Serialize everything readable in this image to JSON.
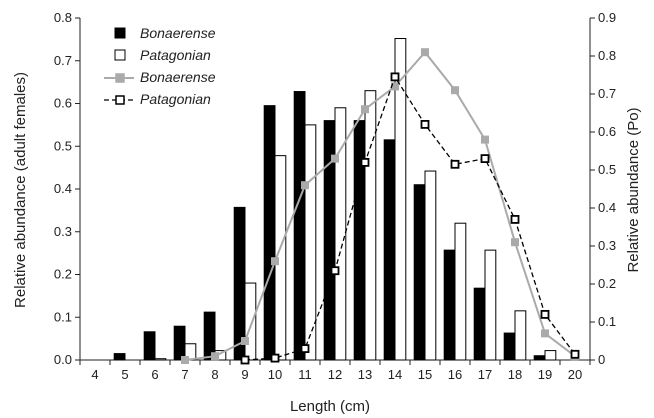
{
  "chart_data": {
    "type": "bar",
    "title": "",
    "xlabel": "Length (cm)",
    "ylabel_left": "Relative abundance (adult females)",
    "ylabel_right": "Relative abundance (Po)",
    "x": [
      4,
      5,
      6,
      7,
      8,
      9,
      10,
      11,
      12,
      13,
      14,
      15,
      16,
      17,
      18,
      19,
      20
    ],
    "x_tick_labels": [
      "4",
      "5",
      "6",
      "7",
      "8",
      "9",
      "10",
      "11",
      "12",
      "13",
      "14",
      "15",
      "16",
      "17",
      "18",
      "19",
      "20"
    ],
    "ylim_left": [
      0,
      0.8
    ],
    "yticks_left": [
      "0.0",
      "0.1",
      "0.2",
      "0.3",
      "0.4",
      "0.5",
      "0.6",
      "0.7",
      "0.8"
    ],
    "ylim_right": [
      0,
      0.9
    ],
    "yticks_right": [
      "0",
      "0.1",
      "0.2",
      "0.3",
      "0.4",
      "0.5",
      "0.6",
      "0.7",
      "0.8",
      "0.9"
    ],
    "legend_position": "top-left",
    "grid": false,
    "bar_series": [
      {
        "name": "Bonaerense",
        "axis": "left",
        "color": "#000000",
        "values": [
          0,
          0.015,
          0.066,
          0.079,
          0.112,
          0.357,
          0.595,
          0.628,
          0.56,
          0.56,
          0.515,
          0.41,
          0.257,
          0.168,
          0.063,
          0.01,
          0
        ]
      },
      {
        "name": "Patagonian",
        "axis": "left",
        "color": "#ffffff",
        "values": [
          0,
          0,
          0.003,
          0.038,
          0.022,
          0.18,
          0.478,
          0.55,
          0.59,
          0.63,
          0.752,
          0.442,
          0.32,
          0.257,
          0.115,
          0.022,
          0
        ]
      }
    ],
    "line_series": [
      {
        "name": "Bonaerense",
        "axis": "right",
        "color": "#aaaaaa",
        "dash": "solid",
        "marker": "filled-square",
        "x": [
          7,
          8,
          9,
          10,
          11,
          12,
          13,
          14,
          15,
          16,
          17,
          18,
          19,
          20
        ],
        "values": [
          0.0,
          0.01,
          0.05,
          0.26,
          0.46,
          0.53,
          0.66,
          0.72,
          0.81,
          0.71,
          0.58,
          0.31,
          0.07,
          0.01
        ]
      },
      {
        "name": "Patagonian",
        "axis": "right",
        "color": "#000000",
        "dash": "dashed",
        "marker": "open-square",
        "x": [
          9,
          10,
          11,
          12,
          13,
          14,
          15,
          16,
          17,
          18,
          19,
          20
        ],
        "values": [
          0.0,
          0.005,
          0.03,
          0.235,
          0.52,
          0.745,
          0.62,
          0.515,
          0.53,
          0.37,
          0.12,
          0.015
        ]
      }
    ]
  }
}
